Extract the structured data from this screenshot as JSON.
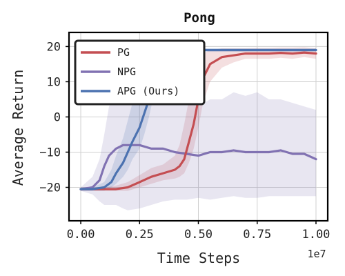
{
  "chart_data": {
    "type": "line",
    "title": "Pong",
    "xlabel": "Time Steps",
    "ylabel": "Average Return",
    "x_offset_label": "1e7",
    "xlim": [
      -0.05,
      1.05
    ],
    "ylim": [
      -29.5,
      24
    ],
    "xticks": [
      0.0,
      0.25,
      0.5,
      0.75,
      1.0
    ],
    "xtick_labels": [
      "0.00",
      "0.25",
      "0.50",
      "0.75",
      "1.00"
    ],
    "yticks": [
      -20,
      -10,
      0,
      10,
      20
    ],
    "ytick_labels": [
      "−20",
      "−10",
      "0",
      "10",
      "20"
    ],
    "grid": true,
    "legend_position": "top-left",
    "series": [
      {
        "name": "PG",
        "color": "#c44e52",
        "x": [
          0.0,
          0.05,
          0.1,
          0.15,
          0.2,
          0.25,
          0.3,
          0.35,
          0.4,
          0.42,
          0.44,
          0.46,
          0.48,
          0.5,
          0.52,
          0.55,
          0.6,
          0.65,
          0.7,
          0.75,
          0.8,
          0.85,
          0.9,
          0.95,
          1.0
        ],
        "y": [
          -20.5,
          -20.5,
          -20.5,
          -20.5,
          -20.0,
          -18.5,
          -17.0,
          -16.0,
          -15.0,
          -14.0,
          -12.0,
          -7.0,
          -2.0,
          5.0,
          11.0,
          15.0,
          17.0,
          17.5,
          18.0,
          18.0,
          18.0,
          18.2,
          18.0,
          18.3,
          18.0
        ],
        "band_lower": [
          -21,
          -21,
          -21,
          -21,
          -21,
          -20,
          -19,
          -18,
          -17.5,
          -17,
          -16,
          -13,
          -9,
          -3,
          4,
          10,
          14,
          15.5,
          16.5,
          16.5,
          16.5,
          16.8,
          16.5,
          17,
          16.5
        ],
        "band_upper": [
          -20,
          -20,
          -20,
          -19.5,
          -18.5,
          -16.5,
          -14.5,
          -13.5,
          -11,
          -8,
          -2,
          5,
          11,
          16,
          18,
          19,
          19.5,
          19.5,
          19.5,
          19.6,
          19.6,
          19.7,
          19.7,
          19.8,
          19.5
        ]
      },
      {
        "name": "NPG",
        "color": "#8172b2",
        "x": [
          0.0,
          0.05,
          0.08,
          0.1,
          0.12,
          0.15,
          0.18,
          0.2,
          0.25,
          0.3,
          0.35,
          0.4,
          0.45,
          0.5,
          0.55,
          0.6,
          0.65,
          0.7,
          0.75,
          0.8,
          0.85,
          0.9,
          0.95,
          1.0
        ],
        "y": [
          -20.5,
          -20.0,
          -18.0,
          -14.0,
          -11.0,
          -9.0,
          -8.0,
          -8.0,
          -8.0,
          -9.0,
          -9.0,
          -10.0,
          -10.5,
          -11.0,
          -10.0,
          -10.0,
          -9.5,
          -10.0,
          -10.0,
          -10.0,
          -9.5,
          -10.5,
          -10.5,
          -12.0
        ],
        "band_lower": [
          -21,
          -22,
          -24,
          -25,
          -25,
          -25,
          -26,
          -26.5,
          -26,
          -25,
          -24,
          -23.5,
          -23.5,
          -23,
          -23.5,
          -23,
          -22.5,
          -23,
          -23,
          -22.5,
          -22.5,
          -22.5,
          -22.5,
          -22.5
        ],
        "band_upper": [
          -20,
          -17,
          -12,
          -5,
          3,
          6,
          6,
          6,
          5,
          6,
          5,
          6,
          5,
          3,
          5,
          5,
          7,
          6,
          7,
          5,
          5,
          4,
          3,
          2
        ]
      },
      {
        "name": "APG (Ours)",
        "color": "#4c72b0",
        "x": [
          0.0,
          0.05,
          0.1,
          0.13,
          0.15,
          0.18,
          0.2,
          0.22,
          0.25,
          0.27,
          0.29,
          0.3,
          0.31,
          0.32,
          0.33,
          0.34,
          0.35,
          0.36,
          0.38,
          0.4,
          0.45,
          0.5,
          0.55,
          0.6,
          0.65,
          0.7,
          0.75,
          0.8,
          0.85,
          0.9,
          0.95,
          1.0
        ],
        "y": [
          -20.5,
          -20.5,
          -20.0,
          -18.5,
          -16.0,
          -13.0,
          -10.0,
          -7.0,
          -3.0,
          1.0,
          5.0,
          8.0,
          10.0,
          12.0,
          13.0,
          14.0,
          16.0,
          17.0,
          18.0,
          18.5,
          18.5,
          19.0,
          19.0,
          19.0,
          19.0,
          19.0,
          19.0,
          19.0,
          19.0,
          19.0,
          19.0,
          19.0
        ],
        "band_lower": [
          -21,
          -21,
          -21,
          -20,
          -19,
          -17,
          -15,
          -12,
          -9,
          -5,
          0,
          3,
          6,
          8,
          10,
          11,
          13,
          15,
          16.5,
          17.5,
          18,
          18.5,
          18.5,
          18.5,
          18.5,
          18.5,
          18.5,
          18.5,
          18.5,
          18.5,
          18.5,
          18.5
        ],
        "band_upper": [
          -20,
          -20,
          -18.5,
          -15,
          -11,
          -6,
          -1,
          4,
          9,
          13,
          16,
          18,
          19,
          19.5,
          19.5,
          19.5,
          19.5,
          19.5,
          19.5,
          19.5,
          19.5,
          19.5,
          19.5,
          19.5,
          19.5,
          19.5,
          19.5,
          19.5,
          19.5,
          19.5,
          19.5,
          19.5
        ]
      }
    ]
  }
}
